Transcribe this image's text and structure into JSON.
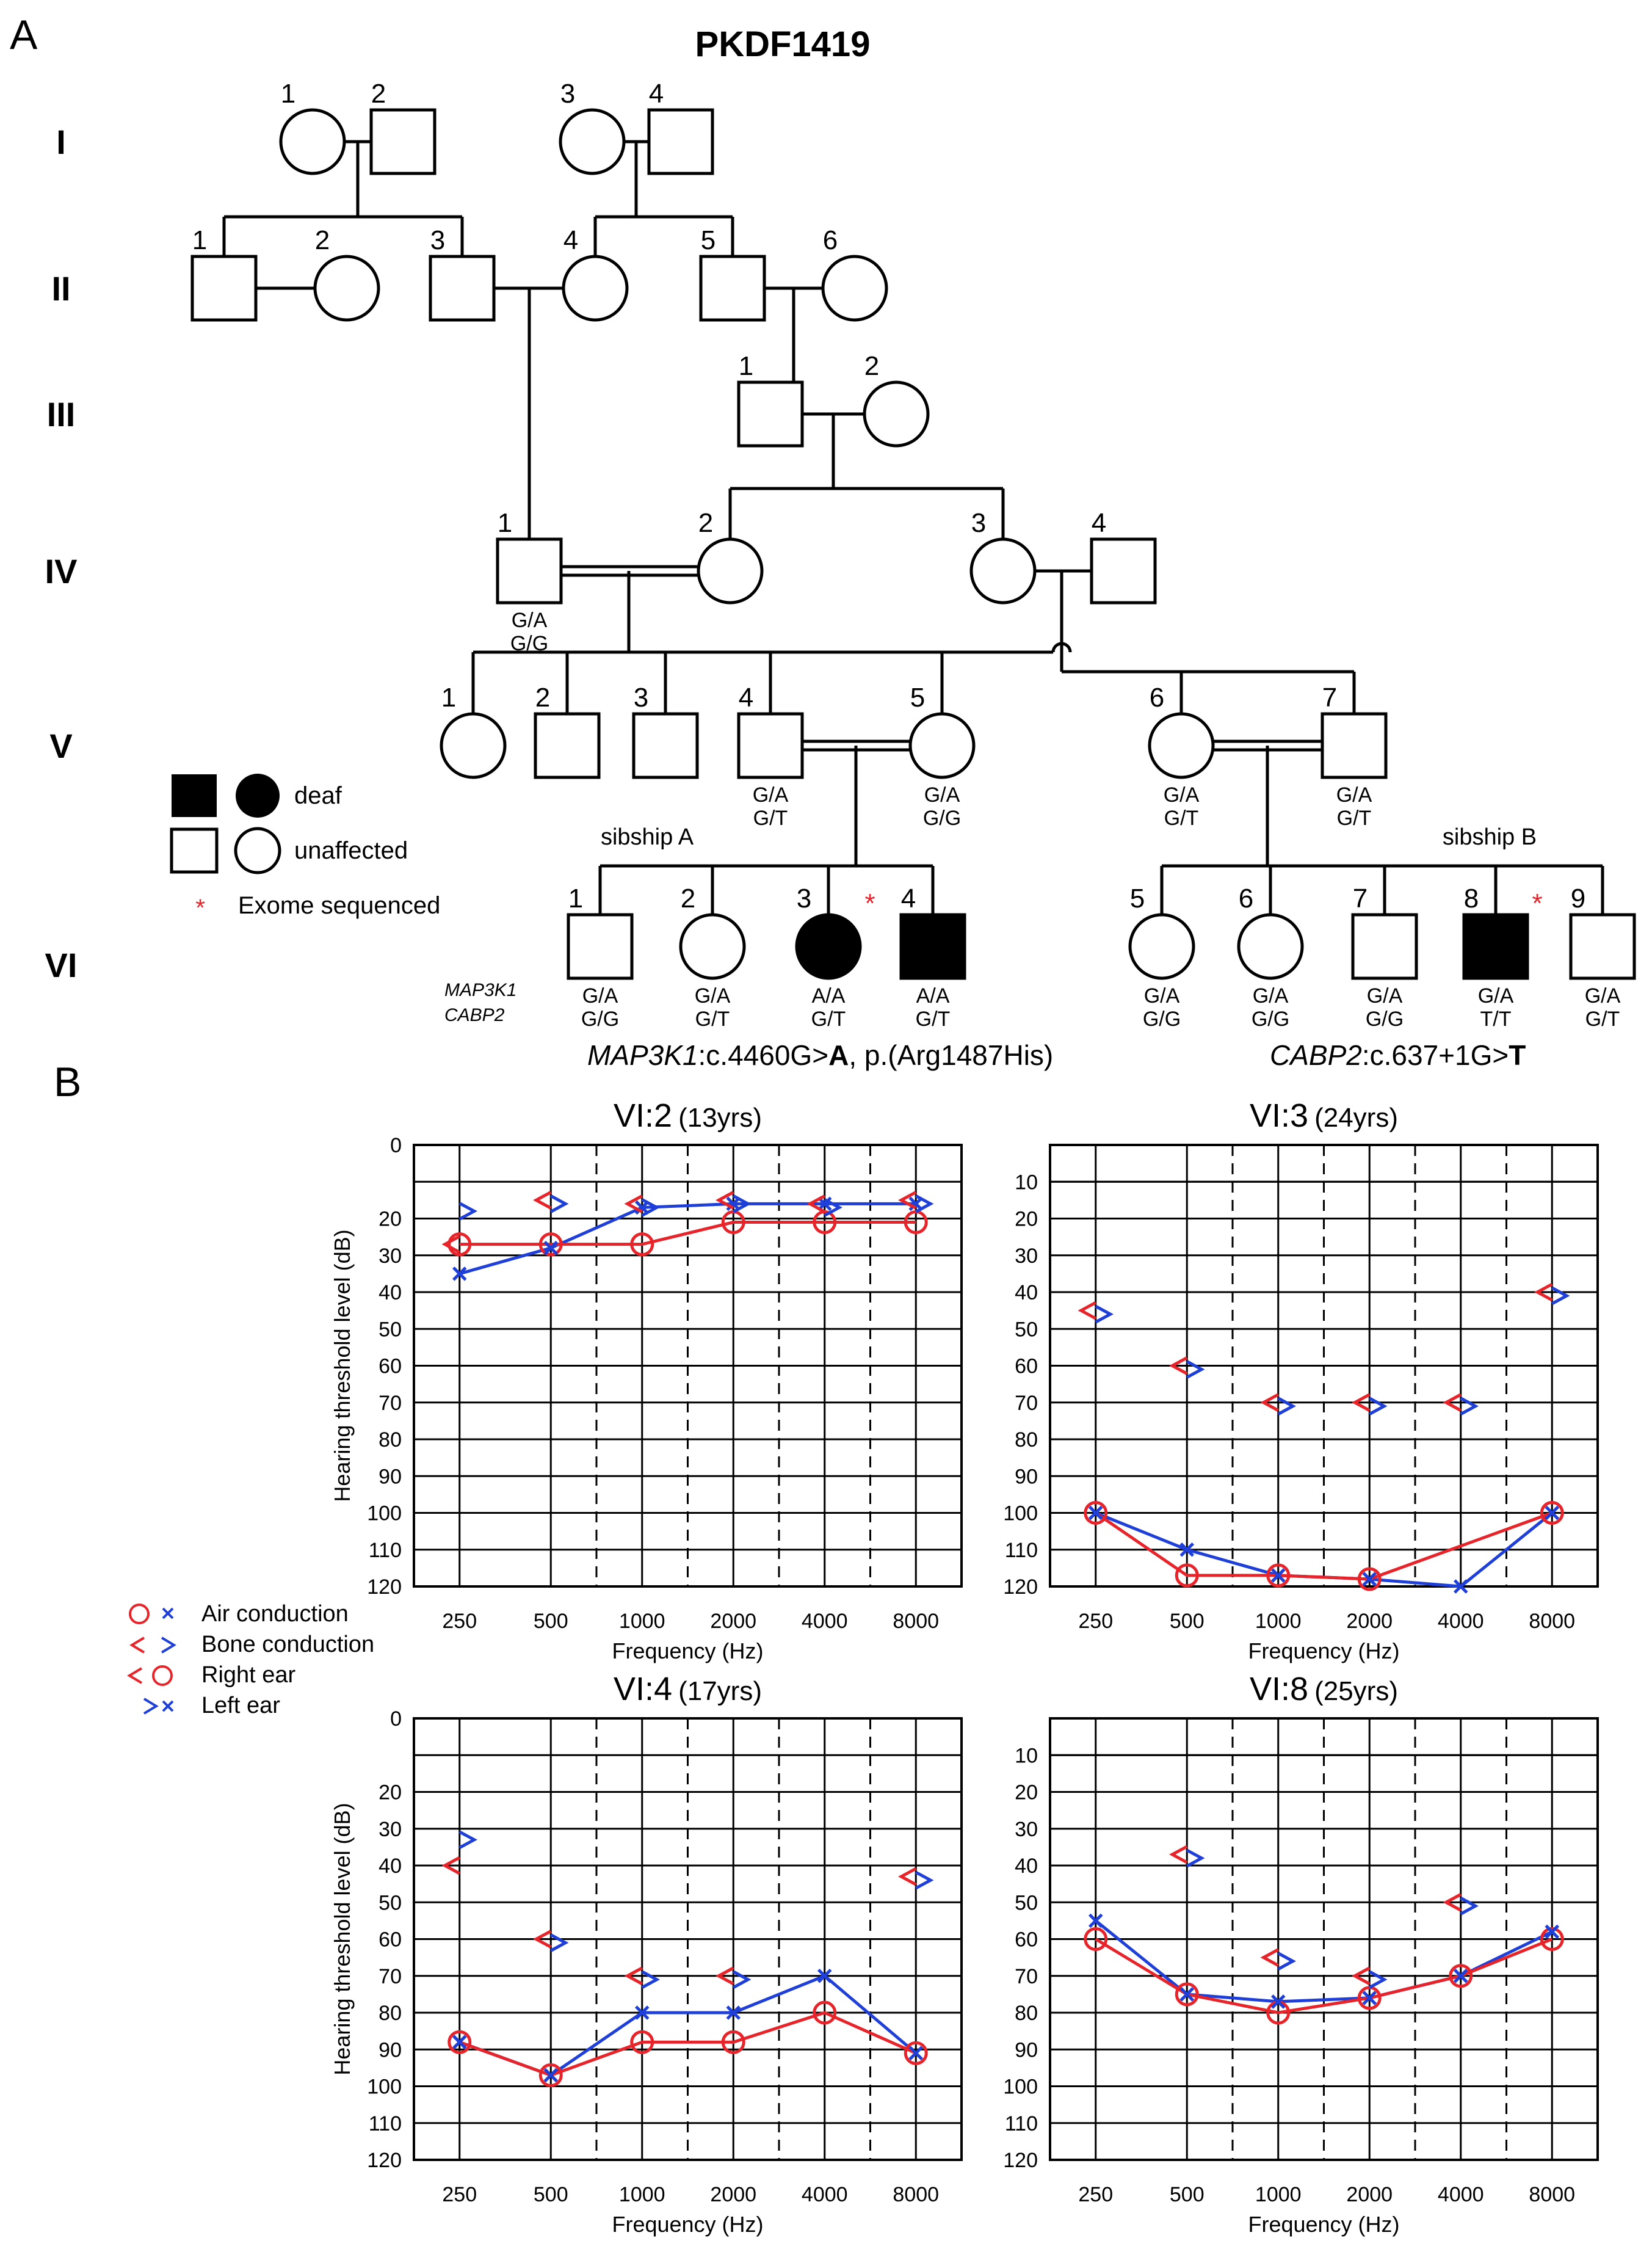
{
  "figure": {
    "panel_a_label": "A",
    "panel_b_label": "B"
  },
  "pedigree": {
    "title": "PKDF1419",
    "generations": [
      "I",
      "II",
      "III",
      "IV",
      "V",
      "VI"
    ],
    "individuals": [
      {
        "id": "I-1",
        "num": "1",
        "sex": "F",
        "affected": false
      },
      {
        "id": "I-2",
        "num": "2",
        "sex": "M",
        "affected": false
      },
      {
        "id": "I-3",
        "num": "3",
        "sex": "F",
        "affected": false
      },
      {
        "id": "I-4",
        "num": "4",
        "sex": "M",
        "affected": false
      },
      {
        "id": "II-1",
        "num": "1",
        "sex": "M",
        "affected": false
      },
      {
        "id": "II-2",
        "num": "2",
        "sex": "F",
        "affected": false
      },
      {
        "id": "II-3",
        "num": "3",
        "sex": "M",
        "affected": false
      },
      {
        "id": "II-4",
        "num": "4",
        "sex": "F",
        "affected": false
      },
      {
        "id": "II-5",
        "num": "5",
        "sex": "M",
        "affected": false
      },
      {
        "id": "II-6",
        "num": "6",
        "sex": "F",
        "affected": false
      },
      {
        "id": "III-1",
        "num": "1",
        "sex": "M",
        "affected": false
      },
      {
        "id": "III-2",
        "num": "2",
        "sex": "F",
        "affected": false
      },
      {
        "id": "IV-1",
        "num": "1",
        "sex": "M",
        "affected": false,
        "map3k1": "G/A",
        "cabp2": "G/G"
      },
      {
        "id": "IV-2",
        "num": "2",
        "sex": "F",
        "affected": false
      },
      {
        "id": "IV-3",
        "num": "3",
        "sex": "F",
        "affected": false
      },
      {
        "id": "IV-4",
        "num": "4",
        "sex": "M",
        "affected": false
      },
      {
        "id": "V-1",
        "num": "1",
        "sex": "F",
        "affected": false
      },
      {
        "id": "V-2",
        "num": "2",
        "sex": "M",
        "affected": false
      },
      {
        "id": "V-3",
        "num": "3",
        "sex": "M",
        "affected": false
      },
      {
        "id": "V-4",
        "num": "4",
        "sex": "M",
        "affected": false,
        "map3k1": "G/A",
        "cabp2": "G/T"
      },
      {
        "id": "V-5",
        "num": "5",
        "sex": "F",
        "affected": false,
        "map3k1": "G/A",
        "cabp2": "G/G"
      },
      {
        "id": "V-6",
        "num": "6",
        "sex": "F",
        "affected": false,
        "map3k1": "G/A",
        "cabp2": "G/T"
      },
      {
        "id": "V-7",
        "num": "7",
        "sex": "M",
        "affected": false,
        "map3k1": "G/A",
        "cabp2": "G/T"
      },
      {
        "id": "VI-1",
        "num": "1",
        "sex": "M",
        "affected": false,
        "map3k1": "G/A",
        "cabp2": "G/G"
      },
      {
        "id": "VI-2",
        "num": "2",
        "sex": "F",
        "affected": false,
        "map3k1": "G/A",
        "cabp2": "G/T"
      },
      {
        "id": "VI-3",
        "num": "3",
        "sex": "F",
        "affected": true,
        "exome": true,
        "map3k1": "A/A",
        "cabp2": "G/T"
      },
      {
        "id": "VI-4",
        "num": "4",
        "sex": "M",
        "affected": true,
        "map3k1": "A/A",
        "cabp2": "G/T"
      },
      {
        "id": "VI-5",
        "num": "5",
        "sex": "F",
        "affected": false,
        "map3k1": "G/A",
        "cabp2": "G/G"
      },
      {
        "id": "VI-6",
        "num": "6",
        "sex": "F",
        "affected": false,
        "map3k1": "G/A",
        "cabp2": "G/G"
      },
      {
        "id": "VI-7",
        "num": "7",
        "sex": "M",
        "affected": false,
        "map3k1": "G/A",
        "cabp2": "G/G"
      },
      {
        "id": "VI-8",
        "num": "8",
        "sex": "M",
        "affected": true,
        "exome": true,
        "map3k1": "G/A",
        "cabp2": "T/T"
      },
      {
        "id": "VI-9",
        "num": "9",
        "sex": "M",
        "affected": false,
        "map3k1": "G/A",
        "cabp2": "G/T"
      }
    ],
    "exome_marker": "*",
    "legend": {
      "deaf": "deaf",
      "unaffected": "unaffected",
      "exome_star": "*",
      "exome": "Exome sequenced"
    },
    "sibship_a": "sibship A",
    "sibship_b": "sibship B",
    "gene_label_1": "MAP3K1",
    "gene_label_2": "CABP2",
    "mutation_a": {
      "gene": "MAP3K1",
      "change": ":c.4460G>",
      "allele": "A",
      "protein": ", p.(Arg1487His)"
    },
    "mutation_b": {
      "gene": "CABP2",
      "change": ":c.637+1G>",
      "allele": "T"
    }
  },
  "audiogram_legend": {
    "air": "Air conduction",
    "bone": "Bone conduction",
    "right": "Right ear",
    "left": "Left ear"
  },
  "chart_data": [
    {
      "type": "line",
      "title": "VI:2",
      "subtitle": "(13yrs)",
      "xlabel": "Frequency (Hz)",
      "ylabel": "Hearing threshold level (dB)",
      "x": [
        250,
        500,
        1000,
        2000,
        4000,
        8000
      ],
      "y_ticks": [
        0,
        20,
        30,
        40,
        50,
        60,
        70,
        80,
        90,
        100,
        110,
        120
      ],
      "ylim": [
        0,
        120
      ],
      "series": [
        {
          "name": "Right ear air conduction",
          "values": [
            27,
            27,
            27,
            21,
            21,
            21
          ]
        },
        {
          "name": "Left ear air conduction",
          "values": [
            35,
            28,
            17,
            16,
            16,
            16
          ]
        },
        {
          "name": "Right ear bone conduction",
          "values": [
            27,
            15,
            16,
            15,
            16,
            15
          ]
        },
        {
          "name": "Left ear bone conduction",
          "values": [
            17,
            15,
            16,
            15,
            16,
            15
          ]
        }
      ]
    },
    {
      "type": "line",
      "title": "VI:3",
      "subtitle": "(24yrs)",
      "xlabel": "Frequency (Hz)",
      "ylabel": "",
      "x": [
        250,
        500,
        1000,
        2000,
        4000,
        8000
      ],
      "y_ticks": [
        10,
        20,
        30,
        40,
        50,
        60,
        70,
        80,
        90,
        100,
        110,
        120
      ],
      "ylim": [
        0,
        120
      ],
      "series": [
        {
          "name": "Right ear air conduction",
          "values": [
            100,
            117,
            117,
            118,
            null,
            100
          ]
        },
        {
          "name": "Left ear air conduction",
          "values": [
            100,
            110,
            117,
            118,
            120,
            100
          ]
        },
        {
          "name": "Right ear bone conduction",
          "values": [
            45,
            60,
            70,
            70,
            70,
            40
          ]
        },
        {
          "name": "Left ear bone conduction",
          "values": [
            45,
            60,
            70,
            70,
            70,
            40
          ]
        }
      ]
    },
    {
      "type": "line",
      "title": "VI:4",
      "subtitle": "(17yrs)",
      "xlabel": "Frequency (Hz)",
      "ylabel": "Hearing threshold level (dB)",
      "x": [
        250,
        500,
        1000,
        2000,
        4000,
        8000
      ],
      "y_ticks": [
        0,
        20,
        30,
        40,
        50,
        60,
        70,
        80,
        90,
        100,
        110,
        120
      ],
      "ylim": [
        0,
        120
      ],
      "series": [
        {
          "name": "Right ear air conduction",
          "values": [
            88,
            97,
            88,
            88,
            80,
            91
          ]
        },
        {
          "name": "Left ear air conduction",
          "values": [
            88,
            97,
            80,
            80,
            70,
            91
          ]
        },
        {
          "name": "Right ear bone conduction",
          "values": [
            40,
            60,
            70,
            70,
            null,
            43
          ]
        },
        {
          "name": "Left ear bone conduction",
          "values": [
            32,
            60,
            70,
            70,
            null,
            43
          ]
        }
      ]
    },
    {
      "type": "line",
      "title": "VI:8",
      "subtitle": "(25yrs)",
      "xlabel": "Frequency (Hz)",
      "ylabel": "",
      "x": [
        250,
        500,
        1000,
        2000,
        4000,
        8000
      ],
      "y_ticks": [
        10,
        20,
        30,
        40,
        50,
        60,
        70,
        80,
        90,
        100,
        110,
        120
      ],
      "ylim": [
        0,
        120
      ],
      "series": [
        {
          "name": "Right ear air conduction",
          "values": [
            60,
            75,
            80,
            76,
            70,
            60
          ]
        },
        {
          "name": "Left ear air conduction",
          "values": [
            55,
            75,
            77,
            76,
            70,
            58
          ]
        },
        {
          "name": "Right ear bone conduction",
          "values": [
            null,
            37,
            65,
            70,
            50,
            null
          ]
        },
        {
          "name": "Left ear bone conduction",
          "values": [
            null,
            37,
            65,
            70,
            50,
            null
          ]
        }
      ]
    }
  ],
  "colors": {
    "right": "#e8242b",
    "left": "#1f3fd9",
    "line": "#000000",
    "star": "#e8242b"
  }
}
